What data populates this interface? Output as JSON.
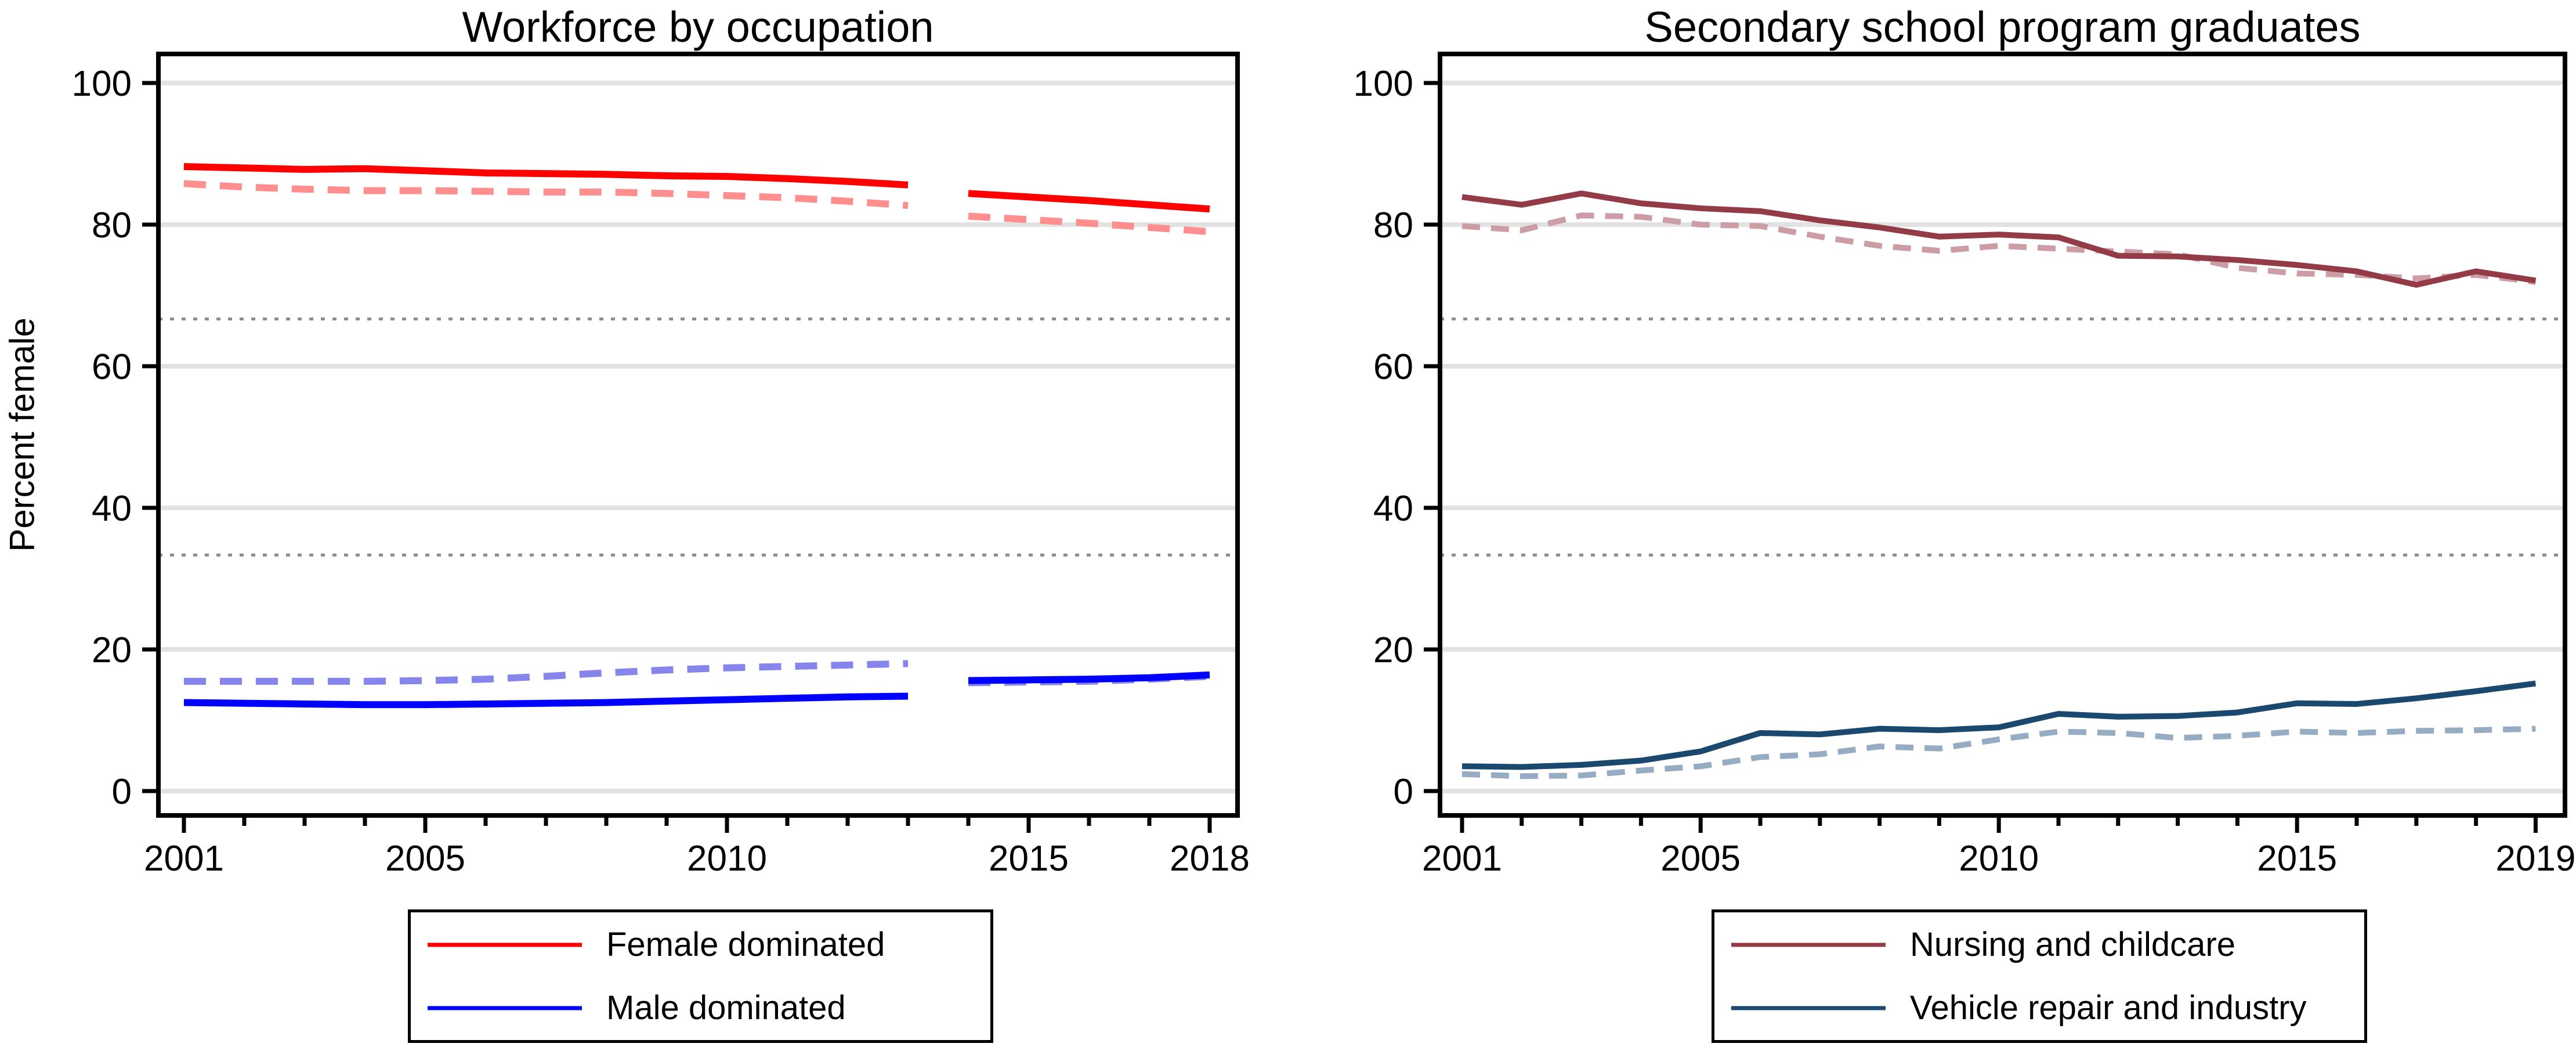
{
  "figure": {
    "background": "#FFFFFF",
    "axis_color": "#000000",
    "grid_color": "#E2E2E2",
    "ref_line_color": "#8C8C8C"
  },
  "chart_data": [
    {
      "type": "line",
      "title": "Workforce by occupation",
      "ylabel": "Percent female",
      "xlabel": "",
      "ylim": [
        0,
        100
      ],
      "yticks": [
        0,
        20,
        40,
        60,
        80,
        100
      ],
      "xticks_labeled": [
        2001,
        2005,
        2010,
        2015,
        2018
      ],
      "x_range": [
        2001,
        2018
      ],
      "ref_lines": [
        33.33,
        66.67
      ],
      "grid": true,
      "legend_position": "below-center",
      "legend": [
        {
          "label": "Female dominated",
          "color": "#FF0000"
        },
        {
          "label": "Male dominated",
          "color": "#0000FF"
        }
      ],
      "series": [
        {
          "legend_label": "Female dominated",
          "style": "dashed",
          "color": "#FF8E8E",
          "segments": [
            {
              "years": [
                2001,
                2002,
                2003,
                2004,
                2005,
                2006,
                2007,
                2008,
                2009,
                2010,
                2011,
                2012,
                2013
              ],
              "values": [
                85.8,
                85.3,
                85.0,
                84.8,
                84.8,
                84.7,
                84.6,
                84.6,
                84.4,
                84.1,
                83.8,
                83.3,
                82.7
              ]
            },
            {
              "years": [
                2014,
                2015,
                2016,
                2017,
                2018
              ],
              "values": [
                81.2,
                80.7,
                80.2,
                79.6,
                79.0
              ]
            }
          ]
        },
        {
          "legend_label": "Male dominated",
          "style": "dashed",
          "color": "#8585EC",
          "segments": [
            {
              "years": [
                2001,
                2002,
                2003,
                2004,
                2005,
                2006,
                2007,
                2008,
                2009,
                2010,
                2011,
                2012,
                2013
              ],
              "values": [
                15.5,
                15.5,
                15.5,
                15.5,
                15.6,
                15.8,
                16.2,
                16.7,
                17.1,
                17.4,
                17.6,
                17.8,
                18.0
              ]
            },
            {
              "years": [
                2014,
                2015,
                2016,
                2017,
                2018
              ],
              "values": [
                15.3,
                15.4,
                15.5,
                15.8,
                16.2
              ]
            }
          ]
        },
        {
          "legend_label": "Female dominated",
          "style": "solid",
          "color": "#FF0000",
          "segments": [
            {
              "years": [
                2001,
                2002,
                2003,
                2004,
                2005,
                2006,
                2007,
                2008,
                2009,
                2010,
                2011,
                2012,
                2013
              ],
              "values": [
                88.2,
                88.0,
                87.8,
                87.9,
                87.6,
                87.3,
                87.2,
                87.1,
                86.9,
                86.8,
                86.5,
                86.1,
                85.6
              ]
            },
            {
              "years": [
                2014,
                2015,
                2016,
                2017,
                2018
              ],
              "values": [
                84.4,
                83.9,
                83.4,
                82.8,
                82.2
              ]
            }
          ]
        },
        {
          "legend_label": "Male dominated",
          "style": "solid",
          "color": "#0000FF",
          "segments": [
            {
              "years": [
                2001,
                2002,
                2003,
                2004,
                2005,
                2006,
                2007,
                2008,
                2009,
                2010,
                2011,
                2012,
                2013
              ],
              "values": [
                12.5,
                12.4,
                12.3,
                12.2,
                12.2,
                12.3,
                12.4,
                12.5,
                12.7,
                12.9,
                13.1,
                13.3,
                13.4
              ]
            },
            {
              "years": [
                2014,
                2015,
                2016,
                2017,
                2018
              ],
              "values": [
                15.6,
                15.7,
                15.8,
                16.0,
                16.4
              ]
            }
          ]
        }
      ]
    },
    {
      "type": "line",
      "title": "Secondary school program graduates",
      "ylabel": "",
      "xlabel": "",
      "ylim": [
        0,
        100
      ],
      "yticks": [
        0,
        20,
        40,
        60,
        80,
        100
      ],
      "xticks_labeled": [
        2001,
        2005,
        2010,
        2015,
        2019
      ],
      "x_range": [
        2001,
        2019
      ],
      "ref_lines": [
        33.33,
        66.67
      ],
      "grid": true,
      "legend_position": "below-center",
      "legend": [
        {
          "label": "Nursing and childcare",
          "color": "#933B46"
        },
        {
          "label": "Vehicle repair and industry",
          "color": "#1B486E"
        }
      ],
      "series": [
        {
          "legend_label": "Nursing and childcare",
          "style": "dashed",
          "color": "#CC9DA5",
          "segments": [
            {
              "years": [
                2001,
                2002,
                2003,
                2004,
                2005,
                2006,
                2007,
                2008,
                2009,
                2010,
                2011,
                2012,
                2013,
                2014,
                2015,
                2016,
                2017,
                2018,
                2019
              ],
              "values": [
                79.8,
                79.2,
                81.3,
                81.1,
                80.0,
                79.8,
                78.3,
                77.0,
                76.3,
                77.0,
                76.6,
                76.2,
                75.8,
                73.9,
                73.1,
                72.9,
                72.4,
                72.9,
                71.9
              ]
            }
          ]
        },
        {
          "legend_label": "Vehicle repair and industry",
          "style": "dashed",
          "color": "#96ACC3",
          "segments": [
            {
              "years": [
                2001,
                2002,
                2003,
                2004,
                2005,
                2006,
                2007,
                2008,
                2009,
                2010,
                2011,
                2012,
                2013,
                2014,
                2015,
                2016,
                2017,
                2018,
                2019
              ],
              "values": [
                2.4,
                2.1,
                2.2,
                2.9,
                3.5,
                4.8,
                5.2,
                6.3,
                6.0,
                7.3,
                8.4,
                8.2,
                7.5,
                7.8,
                8.4,
                8.2,
                8.5,
                8.6,
                8.8
              ]
            }
          ]
        },
        {
          "legend_label": "Nursing and childcare",
          "style": "solid",
          "color": "#933B46",
          "segments": [
            {
              "years": [
                2001,
                2002,
                2003,
                2004,
                2005,
                2006,
                2007,
                2008,
                2009,
                2010,
                2011,
                2012,
                2013,
                2014,
                2015,
                2016,
                2017,
                2018,
                2019
              ],
              "values": [
                83.9,
                82.8,
                84.4,
                83.0,
                82.3,
                81.9,
                80.6,
                79.6,
                78.3,
                78.6,
                78.2,
                75.6,
                75.5,
                75.0,
                74.3,
                73.4,
                71.5,
                73.4,
                72.1
              ]
            }
          ]
        },
        {
          "legend_label": "Vehicle repair and industry",
          "style": "solid",
          "color": "#1B486E",
          "segments": [
            {
              "years": [
                2001,
                2002,
                2003,
                2004,
                2005,
                2006,
                2007,
                2008,
                2009,
                2010,
                2011,
                2012,
                2013,
                2014,
                2015,
                2016,
                2017,
                2018,
                2019
              ],
              "values": [
                3.5,
                3.4,
                3.7,
                4.3,
                5.6,
                8.2,
                8.0,
                8.8,
                8.6,
                9.0,
                10.9,
                10.5,
                10.6,
                11.1,
                12.4,
                12.3,
                13.1,
                14.1,
                15.2
              ]
            }
          ]
        }
      ]
    }
  ]
}
